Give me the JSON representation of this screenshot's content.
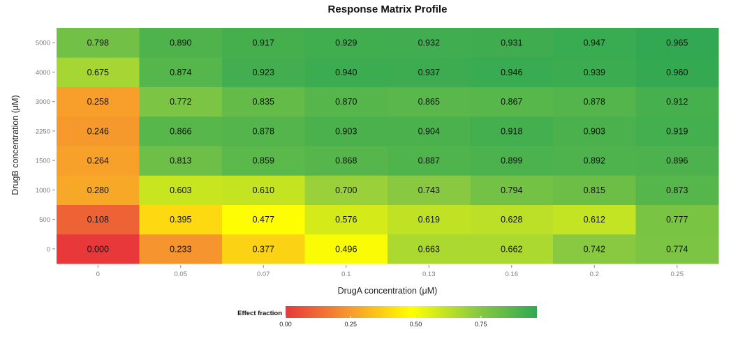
{
  "chart_data": {
    "type": "heatmap",
    "title": "Response Matrix Profile",
    "xlabel": "DrugA concentration (μM)",
    "ylabel": "DrugB concentration (μM)",
    "x_categories": [
      "0",
      "0.05",
      "0.07",
      "0.1",
      "0.13",
      "0.16",
      "0.2",
      "0.25"
    ],
    "y_categories": [
      "0",
      "500",
      "1000",
      "1500",
      "2250",
      "3000",
      "4000",
      "5000"
    ],
    "values": [
      [
        "0.000",
        "0.233",
        "0.377",
        "0.496",
        "0.663",
        "0.662",
        "0.742",
        "0.774"
      ],
      [
        "0.108",
        "0.395",
        "0.477",
        "0.576",
        "0.619",
        "0.628",
        "0.612",
        "0.777"
      ],
      [
        "0.280",
        "0.603",
        "0.610",
        "0.700",
        "0.743",
        "0.794",
        "0.815",
        "0.873"
      ],
      [
        "0.264",
        "0.813",
        "0.859",
        "0.868",
        "0.887",
        "0.899",
        "0.892",
        "0.896"
      ],
      [
        "0.246",
        "0.866",
        "0.878",
        "0.903",
        "0.904",
        "0.918",
        "0.903",
        "0.919"
      ],
      [
        "0.258",
        "0.772",
        "0.835",
        "0.870",
        "0.865",
        "0.867",
        "0.878",
        "0.912"
      ],
      [
        "0.675",
        "0.874",
        "0.923",
        "0.940",
        "0.937",
        "0.946",
        "0.939",
        "0.960"
      ],
      [
        "0.798",
        "0.890",
        "0.917",
        "0.929",
        "0.932",
        "0.931",
        "0.947",
        "0.965"
      ]
    ],
    "legend": {
      "title": "Effect fraction",
      "ticks": [
        "0.00",
        "0.25",
        "0.50",
        "0.75"
      ],
      "range": [
        0,
        0.965
      ],
      "colors": [
        "#e8383a",
        "#f6972e",
        "#ffff00",
        "#8fcc40",
        "#32a852"
      ],
      "placement": "bottom"
    },
    "grid": false
  }
}
